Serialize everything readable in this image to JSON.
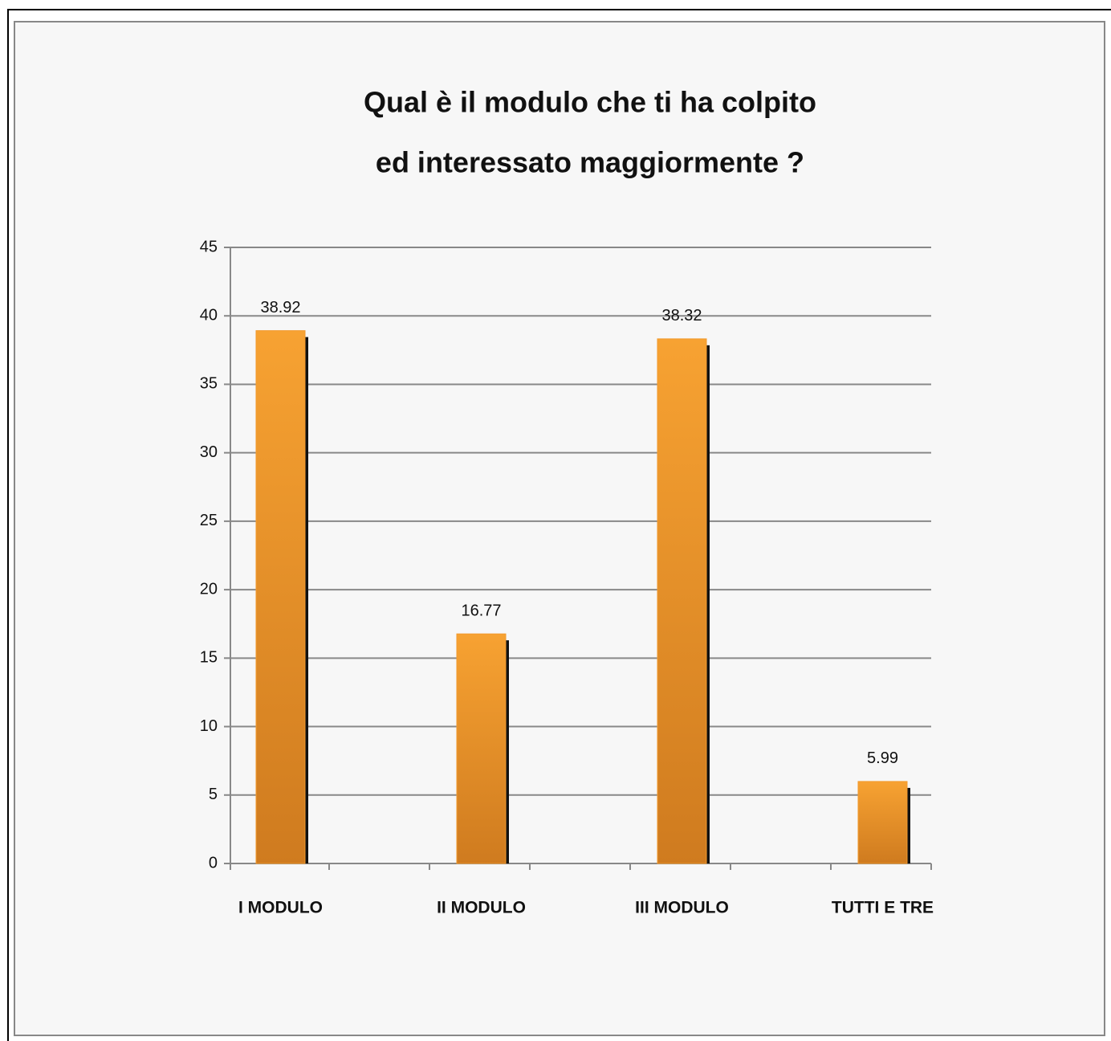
{
  "chart_data": {
    "type": "bar",
    "title": [
      "Qual è il modulo che ti ha colpito",
      "ed interessato maggiormente ?"
    ],
    "categories": [
      "I MODULO",
      "II MODULO",
      "III MODULO",
      "TUTTI E TRE"
    ],
    "values": [
      38.92,
      16.77,
      38.32,
      5.99
    ],
    "color": "#f29a2e",
    "ylim": [
      0,
      45
    ],
    "yticks": [
      0,
      5,
      10,
      15,
      20,
      25,
      30,
      35,
      40,
      45
    ],
    "grid": true
  }
}
